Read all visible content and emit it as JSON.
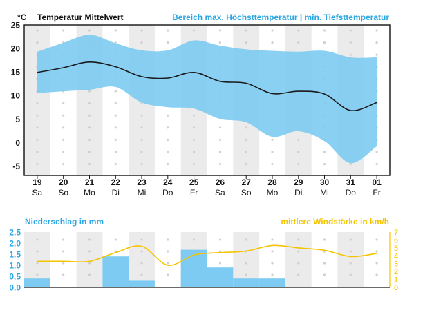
{
  "chart_data": [
    {
      "type": "line",
      "unit": "°C",
      "title": "Temperatur Mittelwert",
      "band_title": "Bereich max. Höchsttemperatur | min. Tiefsttemperatur",
      "ylim": [
        -7,
        25
      ],
      "yticks": [
        25,
        20,
        15,
        10,
        5,
        0,
        -5
      ],
      "days": [
        {
          "date": "19",
          "weekday": "Sa"
        },
        {
          "date": "20",
          "weekday": "So"
        },
        {
          "date": "21",
          "weekday": "Mo"
        },
        {
          "date": "22",
          "weekday": "Di"
        },
        {
          "date": "23",
          "weekday": "Mi"
        },
        {
          "date": "24",
          "weekday": "Do"
        },
        {
          "date": "25",
          "weekday": "Fr"
        },
        {
          "date": "26",
          "weekday": "Sa"
        },
        {
          "date": "27",
          "weekday": "So"
        },
        {
          "date": "28",
          "weekday": "Mo"
        },
        {
          "date": "29",
          "weekday": "Di"
        },
        {
          "date": "30",
          "weekday": "Mi"
        },
        {
          "date": "31",
          "weekday": "Do"
        },
        {
          "date": "01",
          "weekday": "Fr"
        }
      ],
      "mean": [
        14.9,
        15.9,
        17.1,
        16.1,
        14.0,
        13.7,
        14.9,
        13.0,
        12.6,
        10.4,
        10.9,
        10.3,
        6.8,
        8.5
      ],
      "band_max": [
        19.3,
        21.2,
        22.9,
        21.1,
        19.6,
        19.6,
        21.7,
        20.6,
        19.8,
        19.5,
        19.3,
        19.5,
        18.1,
        18.1
      ],
      "band_min": [
        10.5,
        10.9,
        11.2,
        11.8,
        8.5,
        7.5,
        7.2,
        5.0,
        4.3,
        1.2,
        2.4,
        0.3,
        -4.4,
        -0.8
      ],
      "band_color": "#7dcbf2",
      "line_color": "#1a1a1a"
    },
    {
      "type": "bar",
      "title": "Niederschlag in mm",
      "ylim": [
        0,
        2.5
      ],
      "yticks": [
        "2.5",
        "2.0",
        "1.5",
        "1.0",
        "0.5",
        "0.0"
      ],
      "values": [
        0.4,
        0.0,
        0.0,
        1.4,
        0.3,
        0.0,
        1.7,
        0.9,
        0.4,
        0.4,
        0.0,
        0.0,
        0.0,
        0.0
      ],
      "color": "#7dcbf2"
    },
    {
      "type": "line",
      "title": "mittlere Windstärke in km/h",
      "ylim": [
        0,
        7
      ],
      "yticks": [
        "7",
        "6",
        "5",
        "4",
        "3",
        "2",
        "1",
        "0"
      ],
      "values": [
        3.3,
        3.3,
        3.3,
        4.4,
        5.2,
        2.8,
        4.1,
        4.4,
        4.6,
        5.3,
        5.0,
        4.7,
        3.9,
        4.3
      ],
      "color": "#f5c400"
    }
  ],
  "colors": {
    "accent_blue": "#2aa6e2",
    "accent_yellow": "#f5c400",
    "stripe": "#ebebeb",
    "dot": "#d0d0d0"
  }
}
